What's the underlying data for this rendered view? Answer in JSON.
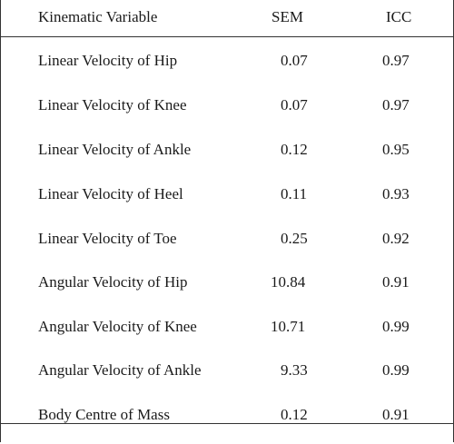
{
  "table": {
    "headers": {
      "variable": "Kinematic Variable",
      "sem": "SEM",
      "icc": "ICC"
    },
    "rows": [
      {
        "variable": "Linear Velocity of Hip",
        "sem": "0.07",
        "icc": "0.97"
      },
      {
        "variable": "Linear Velocity of Knee",
        "sem": "0.07",
        "icc": "0.97"
      },
      {
        "variable": "Linear Velocity of Ankle",
        "sem": "0.12",
        "icc": "0.95"
      },
      {
        "variable": "Linear Velocity of Heel",
        "sem": "0.11",
        "icc": "0.93"
      },
      {
        "variable": "Linear Velocity of Toe",
        "sem": "0.25",
        "icc": "0.92"
      },
      {
        "variable": "Angular Velocity of Hip",
        "sem": "10.84",
        "icc": "0.91"
      },
      {
        "variable": "Angular Velocity of Knee",
        "sem": "10.71",
        "icc": "0.99"
      },
      {
        "variable": "Angular Velocity of Ankle",
        "sem": "9.33",
        "icc": "0.99"
      },
      {
        "variable": "Body Centre of Mass",
        "sem": "0.12",
        "icc": "0.91"
      }
    ]
  }
}
